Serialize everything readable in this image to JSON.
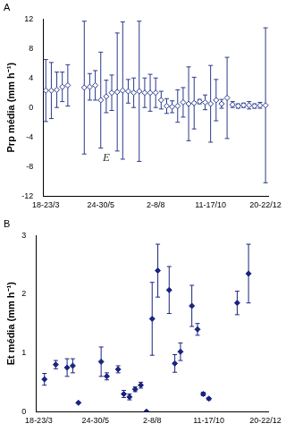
{
  "chart_data": [
    {
      "type": "scatter",
      "title": "A",
      "y_label": "Prp média (mm h⁻¹)",
      "categories": [
        "18-23/3",
        null,
        null,
        null,
        null,
        null,
        null,
        null,
        null,
        null,
        "24-30/5",
        null,
        null,
        null,
        null,
        null,
        null,
        null,
        null,
        null,
        "2-8/8",
        null,
        null,
        null,
        null,
        null,
        null,
        null,
        null,
        null,
        "11-17/10",
        null,
        null,
        null,
        null,
        null,
        null,
        null,
        null,
        null,
        "20-22/12"
      ],
      "series": [
        {
          "color": "#2b3a8c",
          "marker": "diamond_open",
          "values": [
            2.3,
            2.3,
            2.4,
            2.8,
            3.0,
            null,
            null,
            2.7,
            2.8,
            3.0,
            1.0,
            1.5,
            2.0,
            2.1,
            2.3,
            2.2,
            2.0,
            2.2,
            2.0,
            2.0,
            2.0,
            1.0,
            0.2,
            0.1,
            0.2,
            0.7,
            0.5,
            0.6,
            0.8,
            0.7,
            0.5,
            1.0,
            0.5,
            1.3,
            0.4,
            0.2,
            0.3,
            0.3,
            0.2,
            0.3,
            0.3
          ],
          "errors": [
            4.2,
            3.8,
            2.4,
            2.0,
            2.8,
            null,
            null,
            9.0,
            1.8,
            2.0,
            6.5,
            2.2,
            2.4,
            8.0,
            9.3,
            1.6,
            2.0,
            9.5,
            2.0,
            2.5,
            2.0,
            1.2,
            1.0,
            0.8,
            2.2,
            2.0,
            5.0,
            3.5,
            0.3,
            1.0,
            5.2,
            2.8,
            0.6,
            5.5,
            0.4,
            0.3,
            0.3,
            0.5,
            0.3,
            0.4,
            10.5
          ]
        }
      ],
      "annotations": [
        {
          "text": "E",
          "x": 11,
          "y": -6.8
        }
      ],
      "ylim": [
        -12,
        12
      ],
      "yticks": [
        -12,
        -8,
        -4,
        0,
        4,
        8,
        12
      ],
      "grid": false
    },
    {
      "type": "scatter",
      "title": "B",
      "y_label": "Et média (mm h⁻¹)",
      "categories": [
        "18-23/3",
        null,
        null,
        null,
        null,
        null,
        null,
        null,
        null,
        null,
        "24-30/5",
        null,
        null,
        null,
        null,
        null,
        null,
        null,
        null,
        null,
        "2-8/8",
        null,
        null,
        null,
        null,
        null,
        null,
        null,
        null,
        null,
        "11-17/10",
        null,
        null,
        null,
        null,
        null,
        null,
        null,
        null,
        null,
        "20-22/12"
      ],
      "series": [
        {
          "color": "#1a237e",
          "marker": "diamond",
          "values": [
            null,
            0.55,
            null,
            0.8,
            null,
            0.75,
            0.78,
            0.15,
            null,
            null,
            null,
            0.85,
            0.6,
            null,
            0.72,
            0.3,
            0.25,
            0.38,
            0.45,
            0.0,
            1.58,
            2.4,
            null,
            2.07,
            0.82,
            1.02,
            null,
            1.8,
            1.4,
            0.3,
            0.22,
            null,
            null,
            null,
            null,
            1.85,
            null,
            2.35,
            null,
            null,
            null
          ],
          "errors": [
            null,
            0.1,
            null,
            0.07,
            null,
            0.15,
            0.12,
            0.0,
            null,
            null,
            null,
            0.25,
            0.06,
            null,
            0.06,
            0.06,
            0.05,
            0.04,
            0.05,
            0.0,
            0.62,
            0.45,
            null,
            0.4,
            0.15,
            0.15,
            null,
            0.35,
            0.1,
            0.03,
            0.02,
            null,
            null,
            null,
            null,
            0.2,
            null,
            0.5,
            null,
            null,
            null
          ]
        }
      ],
      "ylim": [
        0,
        3
      ],
      "yticks": [
        0,
        1,
        2,
        3
      ],
      "grid": false
    }
  ]
}
